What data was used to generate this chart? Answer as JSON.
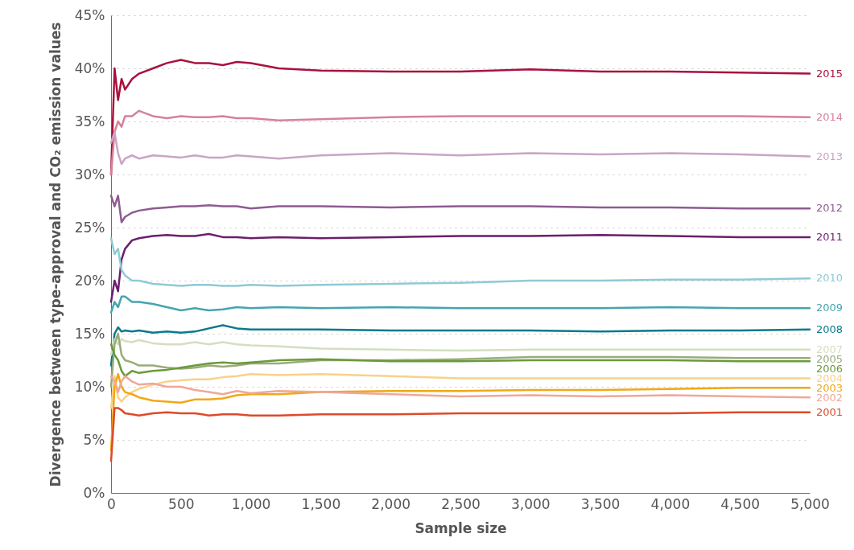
{
  "chart_data": {
    "type": "line",
    "xlabel": "Sample size",
    "ylabel": "Divergence between type-approval and CO₂ emission values",
    "x": [
      0,
      25,
      50,
      75,
      100,
      150,
      200,
      300,
      400,
      500,
      600,
      700,
      800,
      900,
      1000,
      1200,
      1500,
      2000,
      2500,
      3000,
      3500,
      4000,
      4500,
      5000
    ],
    "xlim": [
      0,
      5000
    ],
    "xticks": [
      {
        "value": 0,
        "label": "0"
      },
      {
        "value": 500,
        "label": "500"
      },
      {
        "value": 1000,
        "label": "1,000"
      },
      {
        "value": 1500,
        "label": "1,500"
      },
      {
        "value": 2000,
        "label": "2,000"
      },
      {
        "value": 2500,
        "label": "2,500"
      },
      {
        "value": 3000,
        "label": "3,000"
      },
      {
        "value": 3500,
        "label": "3,500"
      },
      {
        "value": 4000,
        "label": "4,000"
      },
      {
        "value": 4500,
        "label": "4,500"
      },
      {
        "value": 5000,
        "label": "5,000"
      }
    ],
    "ylim": [
      0,
      45
    ],
    "yticks": [
      {
        "value": 0,
        "label": "0%"
      },
      {
        "value": 5,
        "label": "5%"
      },
      {
        "value": 10,
        "label": "10%"
      },
      {
        "value": 15,
        "label": "15%"
      },
      {
        "value": 20,
        "label": "20%"
      },
      {
        "value": 25,
        "label": "25%"
      },
      {
        "value": 30,
        "label": "30%"
      },
      {
        "value": 35,
        "label": "35%"
      },
      {
        "value": 40,
        "label": "40%"
      },
      {
        "value": 45,
        "label": "45%"
      }
    ],
    "grid": "y",
    "series": [
      {
        "name": "2015",
        "color": "#a8123e",
        "values": [
          30,
          40,
          37,
          39,
          38,
          39,
          39.5,
          40,
          40.5,
          40.8,
          40.5,
          40.5,
          40.3,
          40.6,
          40.5,
          40,
          39.8,
          39.7,
          39.7,
          39.9,
          39.7,
          39.7,
          39.6,
          39.5
        ]
      },
      {
        "name": "2014",
        "color": "#d4829a",
        "values": [
          30,
          34,
          35,
          34.5,
          35.5,
          35.5,
          36,
          35.5,
          35.3,
          35.5,
          35.4,
          35.4,
          35.5,
          35.3,
          35.3,
          35.1,
          35.2,
          35.4,
          35.5,
          35.5,
          35.5,
          35.5,
          35.5,
          35.4
        ]
      },
      {
        "name": "2013",
        "color": "#c9a5c4",
        "values": [
          33,
          34,
          32,
          31,
          31.5,
          31.8,
          31.5,
          31.8,
          31.7,
          31.6,
          31.8,
          31.6,
          31.6,
          31.8,
          31.7,
          31.5,
          31.8,
          32,
          31.8,
          32,
          31.9,
          32,
          31.9,
          31.7
        ]
      },
      {
        "name": "2012",
        "color": "#8e5b93",
        "values": [
          28,
          27,
          28,
          25.5,
          26,
          26.4,
          26.6,
          26.8,
          26.9,
          27,
          27,
          27.1,
          27,
          27,
          26.8,
          27,
          27,
          26.9,
          27,
          27,
          26.9,
          26.9,
          26.8,
          26.8
        ]
      },
      {
        "name": "2011",
        "color": "#6b1f6b",
        "values": [
          18,
          20,
          19,
          22,
          23,
          23.8,
          24,
          24.2,
          24.3,
          24.2,
          24.2,
          24.4,
          24.1,
          24.1,
          24,
          24.1,
          24,
          24.1,
          24.2,
          24.2,
          24.3,
          24.2,
          24.1,
          24.1
        ]
      },
      {
        "name": "2010",
        "color": "#8fcad6",
        "values": [
          24,
          22.5,
          23,
          21,
          20.5,
          20,
          20,
          19.7,
          19.6,
          19.5,
          19.6,
          19.6,
          19.5,
          19.5,
          19.6,
          19.5,
          19.6,
          19.7,
          19.8,
          20,
          20,
          20.1,
          20.1,
          20.2
        ]
      },
      {
        "name": "2009",
        "color": "#45a5b0",
        "values": [
          17,
          18,
          17.5,
          18.5,
          18.5,
          18,
          18,
          17.8,
          17.5,
          17.2,
          17.4,
          17.2,
          17.3,
          17.5,
          17.4,
          17.5,
          17.4,
          17.5,
          17.4,
          17.4,
          17.4,
          17.5,
          17.4,
          17.4
        ]
      },
      {
        "name": "2008",
        "color": "#087a8c",
        "values": [
          12,
          15,
          15.6,
          15.2,
          15.3,
          15.2,
          15.3,
          15.1,
          15.2,
          15.1,
          15.2,
          15.5,
          15.8,
          15.5,
          15.4,
          15.4,
          15.4,
          15.3,
          15.3,
          15.3,
          15.2,
          15.3,
          15.3,
          15.4
        ]
      },
      {
        "name": "2007",
        "color": "#d3dfbf",
        "values": [
          13,
          14.5,
          14,
          14.5,
          14.3,
          14.2,
          14.4,
          14.1,
          14,
          14,
          14.2,
          14,
          14.2,
          14,
          13.9,
          13.8,
          13.6,
          13.5,
          13.4,
          13.5,
          13.5,
          13.5,
          13.5,
          13.5
        ]
      },
      {
        "name": "2005",
        "color": "#9aab7a",
        "values": [
          10,
          14,
          15,
          13,
          12.5,
          12.3,
          12,
          12,
          11.8,
          11.7,
          11.8,
          12,
          11.9,
          12,
          12.2,
          12.2,
          12.5,
          12.5,
          12.6,
          12.8,
          12.8,
          12.8,
          12.7,
          12.7
        ]
      },
      {
        "name": "2006",
        "color": "#6a9a3a",
        "values": [
          14,
          13,
          12.5,
          11.5,
          11,
          11.5,
          11.3,
          11.5,
          11.6,
          11.8,
          12,
          12.2,
          12.3,
          12.2,
          12.3,
          12.5,
          12.6,
          12.4,
          12.4,
          12.5,
          12.5,
          12.5,
          12.4,
          12.4
        ]
      },
      {
        "name": "2004",
        "color": "#f7d28a",
        "values": [
          8,
          11,
          9,
          8.6,
          9,
          9.5,
          9.8,
          10.2,
          10.5,
          10.6,
          10.7,
          10.7,
          10.9,
          11,
          11.2,
          11.1,
          11.2,
          11,
          10.8,
          10.8,
          10.8,
          10.8,
          10.8,
          10.8
        ]
      },
      {
        "name": "2003",
        "color": "#f0a818",
        "values": [
          4,
          10,
          11.2,
          10,
          9.5,
          9.3,
          9,
          8.7,
          8.6,
          8.5,
          8.8,
          8.8,
          8.9,
          9.2,
          9.3,
          9.3,
          9.5,
          9.6,
          9.6,
          9.7,
          9.7,
          9.8,
          9.9,
          9.9
        ]
      },
      {
        "name": "2002",
        "color": "#efa898",
        "values": [
          11,
          10.5,
          9.5,
          10.5,
          11,
          10.5,
          10.2,
          10.3,
          10,
          10,
          9.7,
          9.5,
          9.3,
          9.6,
          9.4,
          9.6,
          9.5,
          9.3,
          9.1,
          9.2,
          9.1,
          9.2,
          9.1,
          9
        ]
      },
      {
        "name": "2001",
        "color": "#dd4a2a",
        "values": [
          3,
          8,
          8,
          7.8,
          7.5,
          7.4,
          7.3,
          7.5,
          7.6,
          7.5,
          7.5,
          7.3,
          7.4,
          7.4,
          7.3,
          7.3,
          7.4,
          7.4,
          7.5,
          7.5,
          7.5,
          7.5,
          7.6,
          7.6
        ]
      }
    ]
  }
}
